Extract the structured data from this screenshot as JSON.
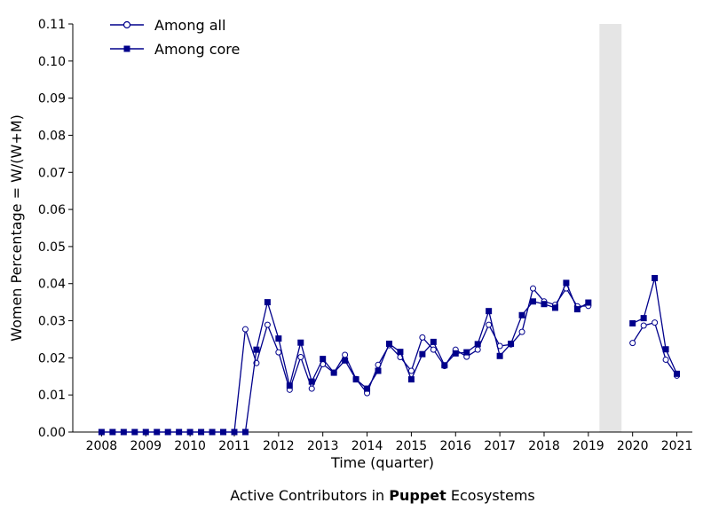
{
  "chart_data": {
    "type": "line",
    "xlabel": "Time (quarter)",
    "ylabel": "Women Percentage = W/(W+M)",
    "caption": {
      "prefix": "Active Contributors in ",
      "bold": "Puppet",
      "suffix": " Ecosystems"
    },
    "xlim": [
      2007.35,
      2021.35
    ],
    "ylim": [
      0,
      0.11
    ],
    "x_ticks": [
      2008,
      2009,
      2010,
      2011,
      2012,
      2013,
      2014,
      2015,
      2016,
      2017,
      2018,
      2019,
      2020,
      2021
    ],
    "x_tick_labels": [
      "2008",
      "2009",
      "2010",
      "2011",
      "2012",
      "2013",
      "2014",
      "2015",
      "2016",
      "2017",
      "2018",
      "2019",
      "2020",
      "2021"
    ],
    "y_ticks": [
      0,
      0.01,
      0.02,
      0.03,
      0.04,
      0.05,
      0.06,
      0.07,
      0.08,
      0.09,
      0.1,
      0.11
    ],
    "y_tick_labels": [
      "0.00",
      "0.01",
      "0.02",
      "0.03",
      "0.04",
      "0.05",
      "0.06",
      "0.07",
      "0.08",
      "0.09",
      "0.10",
      "0.11"
    ],
    "shaded_region": [
      2019.25,
      2019.75
    ],
    "grid": false,
    "legend_position": "top-left",
    "colors": {
      "line": "#00008b",
      "shade": "#e5e5e5",
      "axis": "#000000"
    },
    "x": [
      2008.0,
      2008.25,
      2008.5,
      2008.75,
      2009.0,
      2009.25,
      2009.5,
      2009.75,
      2010.0,
      2010.25,
      2010.5,
      2010.75,
      2011.0,
      2011.25,
      2011.5,
      2011.75,
      2012.0,
      2012.25,
      2012.5,
      2012.75,
      2013.0,
      2013.25,
      2013.5,
      2013.75,
      2014.0,
      2014.25,
      2014.5,
      2014.75,
      2015.0,
      2015.25,
      2015.5,
      2015.75,
      2016.0,
      2016.25,
      2016.5,
      2016.75,
      2017.0,
      2017.25,
      2017.5,
      2017.75,
      2018.0,
      2018.25,
      2018.5,
      2018.75,
      2019.0,
      2019.25,
      2019.5,
      2019.75,
      2020.0,
      2020.25,
      2020.5,
      2020.75,
      2021.0
    ],
    "series": [
      {
        "name": "Among all",
        "marker": "circle-open",
        "values": [
          0,
          0,
          0,
          0,
          0,
          0,
          0,
          0,
          0,
          0,
          0,
          0,
          0,
          0.0277,
          0.0186,
          0.0289,
          0.0215,
          0.0114,
          0.0202,
          0.0117,
          0.0183,
          0.016,
          0.0208,
          0.0143,
          0.0105,
          0.0181,
          0.0234,
          0.0202,
          0.0165,
          0.0255,
          0.0222,
          0.0178,
          0.0222,
          0.0203,
          0.0222,
          0.0289,
          0.0232,
          0.0236,
          0.027,
          0.0387,
          0.0352,
          0.0343,
          0.0387,
          0.0339,
          0.034,
          null,
          null,
          null,
          0.024,
          0.0287,
          0.0295,
          0.0195,
          0.0152
        ]
      },
      {
        "name": "Among core",
        "marker": "square-filled",
        "values": [
          0,
          0,
          0,
          0,
          0,
          0,
          0,
          0,
          0,
          0,
          0,
          0,
          0,
          0,
          0.0222,
          0.035,
          0.0252,
          0.0125,
          0.0241,
          0.0136,
          0.0197,
          0.016,
          0.0193,
          0.0142,
          0.0117,
          0.0165,
          0.0238,
          0.0216,
          0.0142,
          0.021,
          0.0243,
          0.018,
          0.0212,
          0.0215,
          0.0237,
          0.0326,
          0.0205,
          0.0238,
          0.0315,
          0.0352,
          0.0345,
          0.0335,
          0.0402,
          0.0331,
          0.0349,
          null,
          null,
          null,
          0.0293,
          0.0307,
          0.0415,
          0.0223,
          0.0157
        ]
      }
    ]
  }
}
